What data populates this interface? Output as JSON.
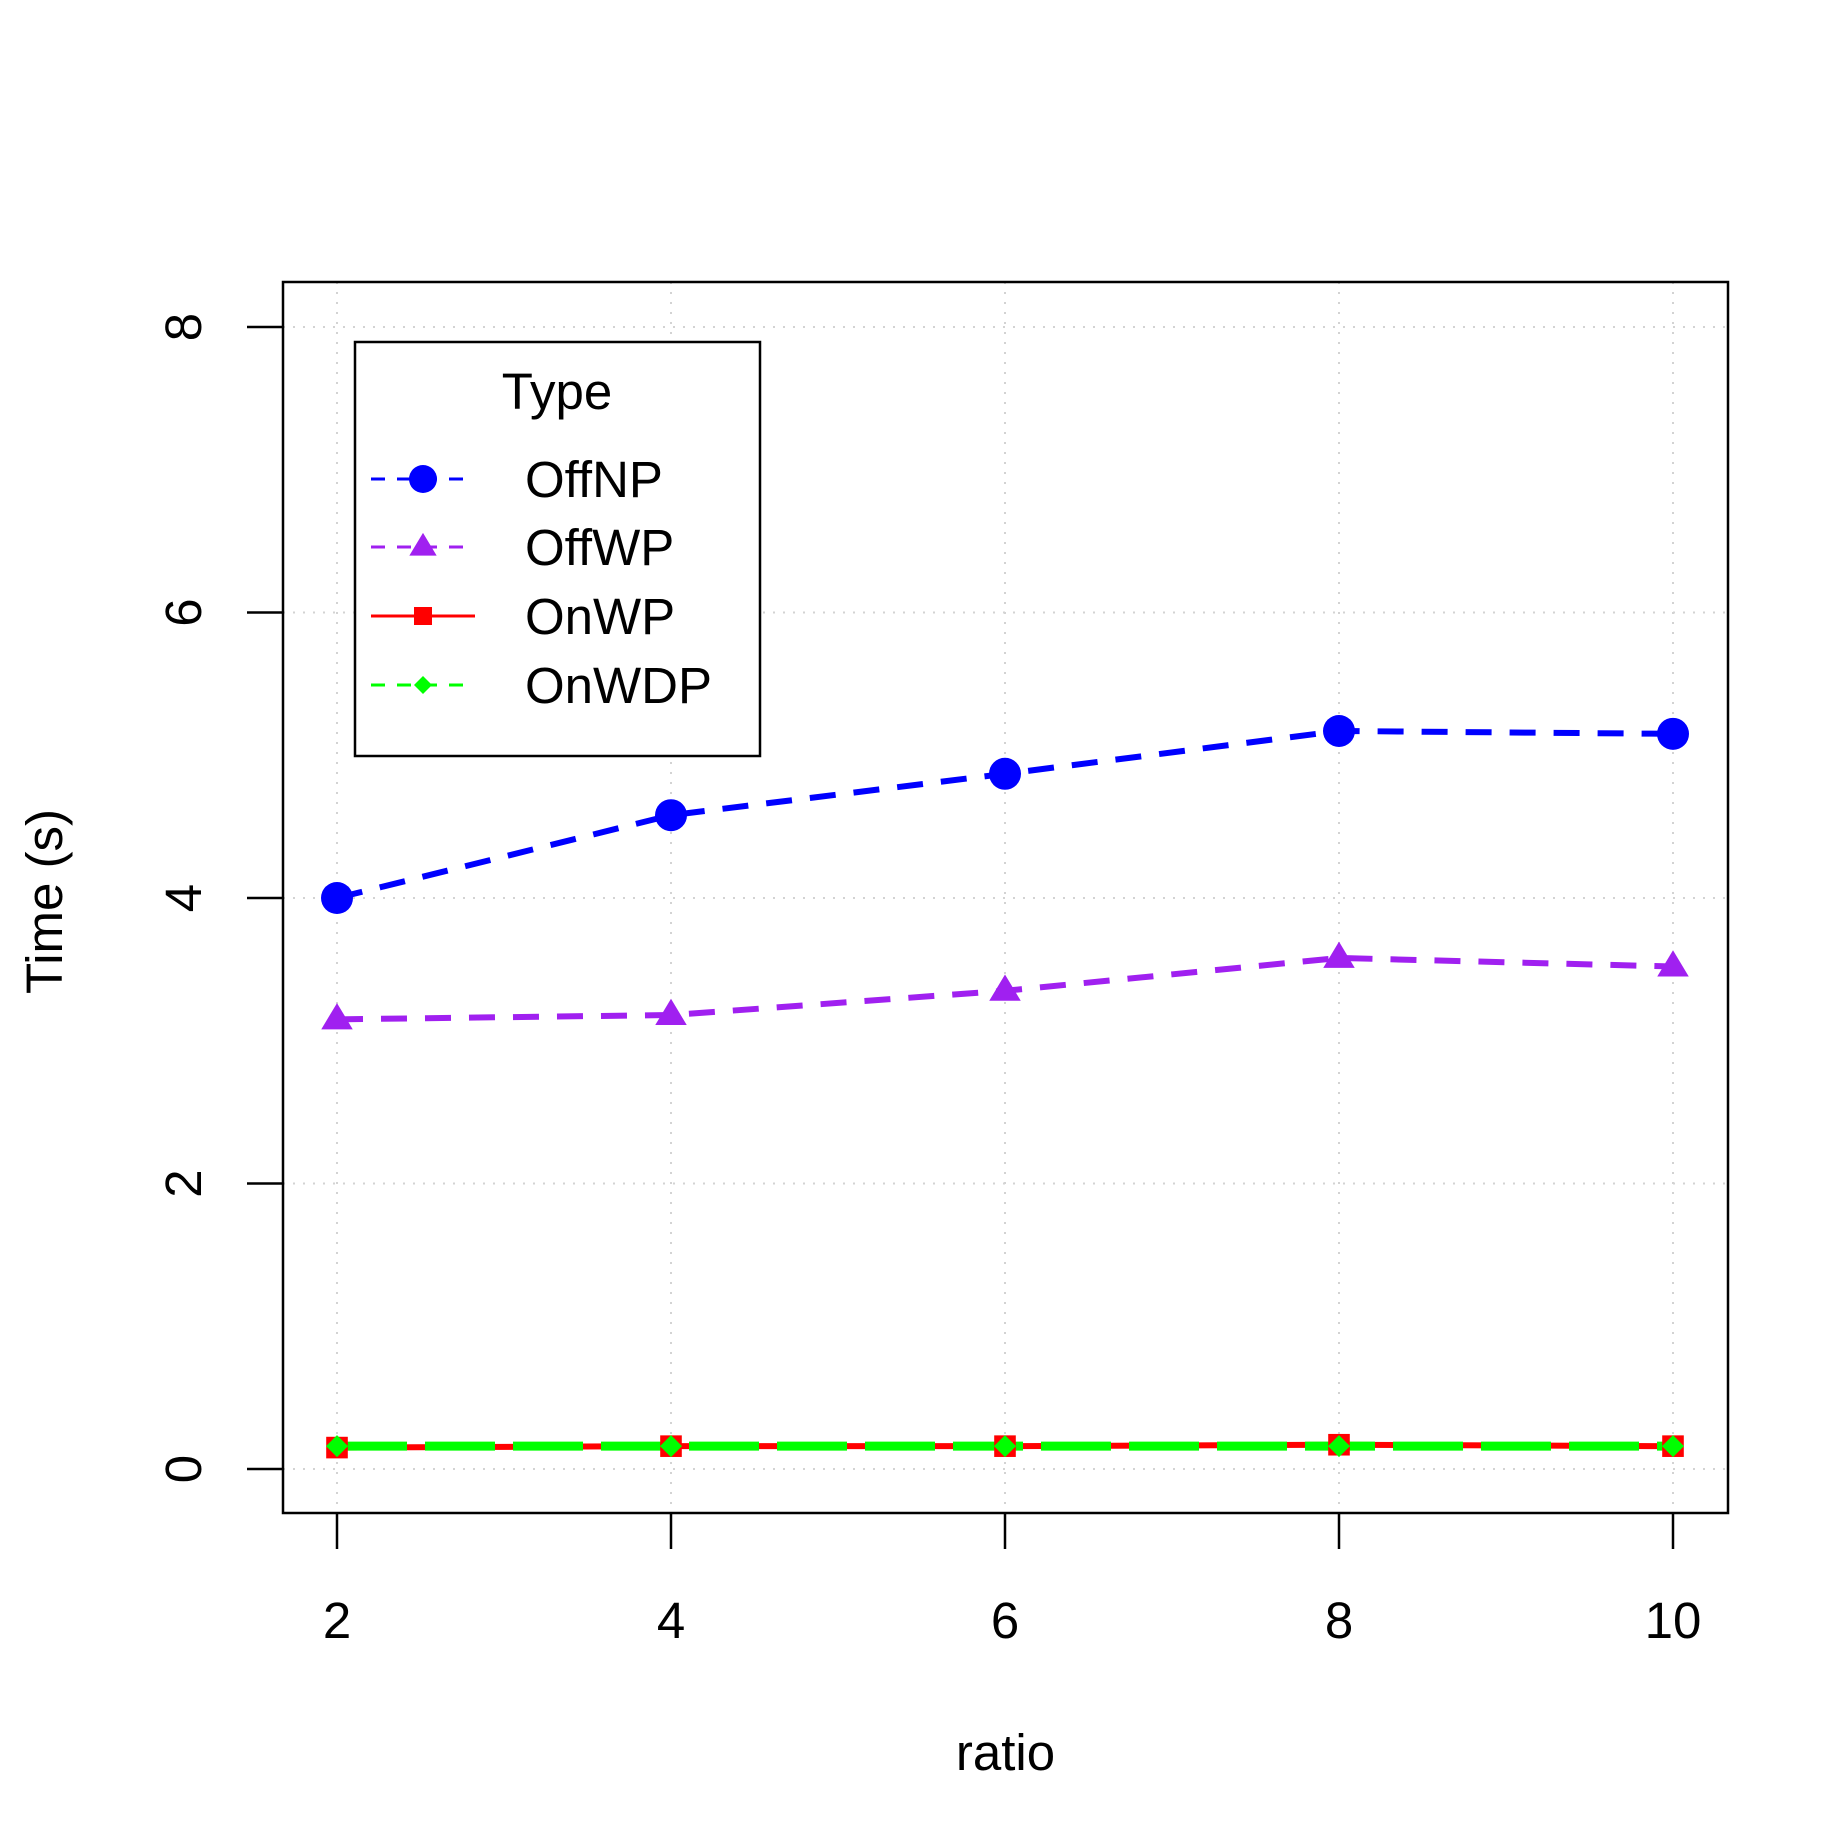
{
  "chart_data": {
    "type": "line",
    "title": "",
    "xlabel": "ratio",
    "ylabel": "Time (s)",
    "xlim": [
      2,
      10
    ],
    "ylim": [
      0,
      8
    ],
    "x": [
      2,
      4,
      6,
      8,
      10
    ],
    "x_ticks": [
      "2",
      "4",
      "6",
      "8",
      "10"
    ],
    "y_ticks": [
      "0",
      "2",
      "4",
      "6",
      "8"
    ],
    "grid": true,
    "legend": {
      "title": "Type",
      "position": "top-left"
    },
    "series": [
      {
        "name": "OffNP",
        "values": [
          4.0,
          4.58,
          4.87,
          5.17,
          5.15
        ],
        "color": "#0000ff",
        "marker": "circle",
        "line": "dashed"
      },
      {
        "name": "OffWP",
        "values": [
          3.15,
          3.18,
          3.35,
          3.58,
          3.52
        ],
        "color": "#a020f0",
        "marker": "triangle",
        "line": "dashed"
      },
      {
        "name": "OnWP",
        "values": [
          0.15,
          0.16,
          0.16,
          0.17,
          0.16
        ],
        "color": "#ff0000",
        "marker": "square",
        "line": "solid"
      },
      {
        "name": "OnWDP",
        "values": [
          0.16,
          0.16,
          0.16,
          0.16,
          0.16
        ],
        "color": "#00ff00",
        "marker": "diamond",
        "line": "dashed"
      }
    ]
  }
}
